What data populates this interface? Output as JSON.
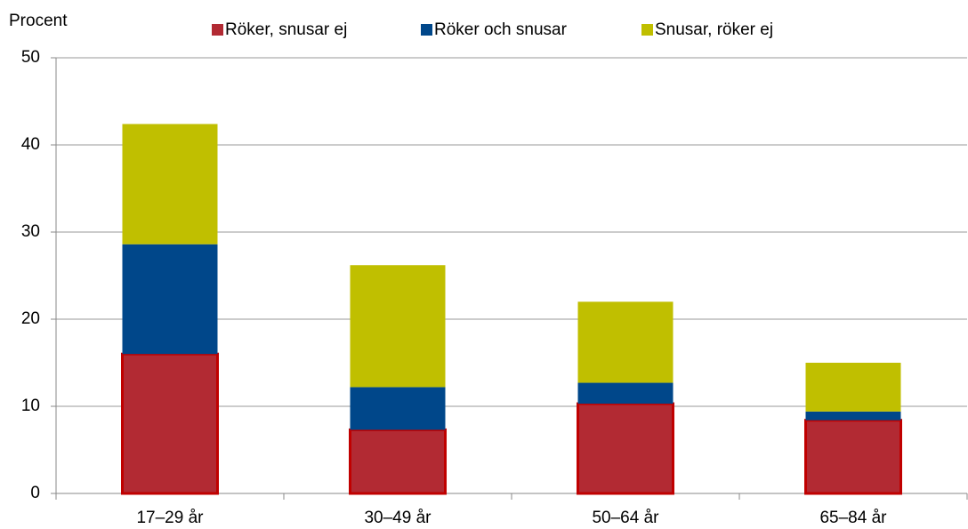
{
  "chart_data": {
    "type": "stacked_bar",
    "y_label": "Procent",
    "categories": [
      "17–29 år",
      "30–49 år",
      "50–64 år",
      "65–84 år"
    ],
    "series": [
      {
        "name": "Röker, snusar ej",
        "color": "#b22a33",
        "values": [
          16,
          7.3,
          10.3,
          8.4
        ]
      },
      {
        "name": "Röker och snusar",
        "color": "#00478a",
        "values": [
          12.6,
          4.9,
          2.4,
          1.0
        ]
      },
      {
        "name": "Snusar, röker ej",
        "color": "#c0bf00",
        "values": [
          13.8,
          14.0,
          9.3,
          5.6
        ]
      }
    ],
    "ylim": [
      0,
      50
    ],
    "yticks": [
      0,
      10,
      20,
      30,
      40,
      50
    ],
    "grid": true,
    "legend": "top"
  }
}
